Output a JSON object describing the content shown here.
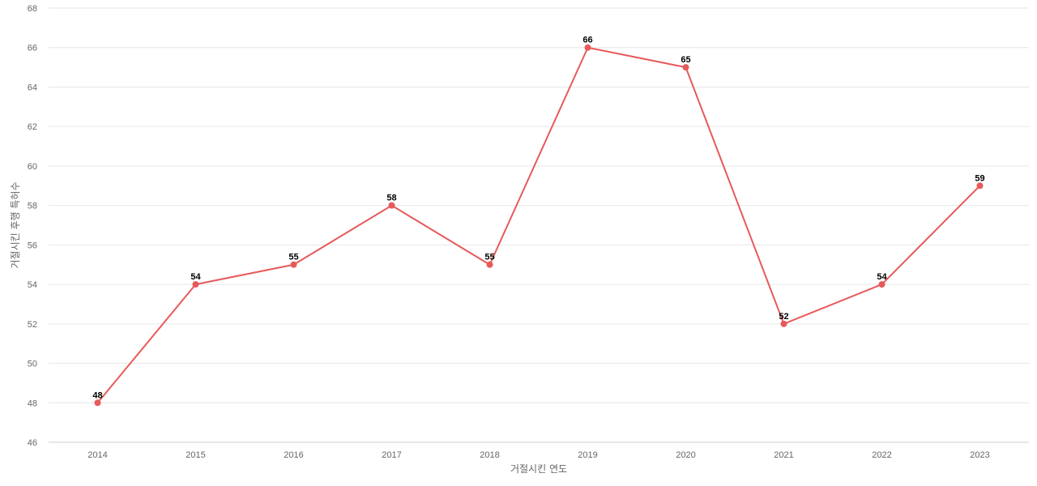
{
  "chart_data": {
    "type": "line",
    "title": "",
    "xlabel": "거절시킨 연도",
    "ylabel": "거절시킨 후행 특허수",
    "categories": [
      "2014",
      "2015",
      "2016",
      "2017",
      "2018",
      "2019",
      "2020",
      "2021",
      "2022",
      "2023"
    ],
    "series": [
      {
        "values": [
          48,
          54,
          55,
          58,
          55,
          66,
          65,
          52,
          54,
          59
        ],
        "color": "#e8595a"
      }
    ],
    "ylim": [
      46,
      68
    ],
    "yticks": [
      46,
      48,
      50,
      52,
      54,
      56,
      58,
      60,
      62,
      64,
      66,
      68
    ],
    "grid": true,
    "data_labels": true,
    "legend": "none"
  }
}
